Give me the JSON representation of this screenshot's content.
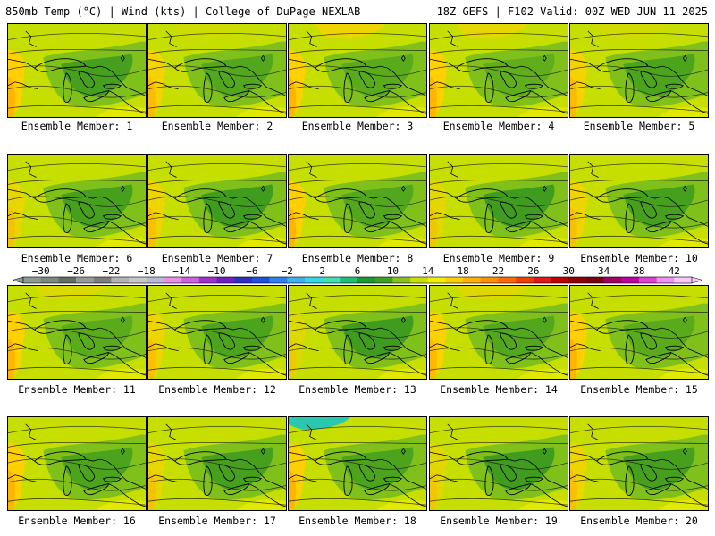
{
  "header": {
    "left_title": "850mb Temp (°C) | Wind (kts) | College of DuPage NEXLAB",
    "right_title": "18Z GEFS | F102 Valid: 00Z WED JUN 11 2025"
  },
  "panels": [
    {
      "label": "Ensemble Member: 1"
    },
    {
      "label": "Ensemble Member: 2"
    },
    {
      "label": "Ensemble Member: 3"
    },
    {
      "label": "Ensemble Member: 4"
    },
    {
      "label": "Ensemble Member: 5"
    },
    {
      "label": "Ensemble Member: 6"
    },
    {
      "label": "Ensemble Member: 7"
    },
    {
      "label": "Ensemble Member: 8"
    },
    {
      "label": "Ensemble Member: 9"
    },
    {
      "label": "Ensemble Member: 10"
    },
    {
      "label": "Ensemble Member: 11"
    },
    {
      "label": "Ensemble Member: 12"
    },
    {
      "label": "Ensemble Member: 13"
    },
    {
      "label": "Ensemble Member: 14"
    },
    {
      "label": "Ensemble Member: 15"
    },
    {
      "label": "Ensemble Member: 16"
    },
    {
      "label": "Ensemble Member: 17"
    },
    {
      "label": "Ensemble Member: 18"
    },
    {
      "label": "Ensemble Member: 19"
    },
    {
      "label": "Ensemble Member: 20"
    }
  ],
  "colorbar": {
    "tick_labels": [
      "−30",
      "−26",
      "−22",
      "−18",
      "−14",
      "−10",
      "−6",
      "−2",
      "2",
      "6",
      "10",
      "14",
      "18",
      "22",
      "26",
      "30",
      "34",
      "38",
      "42"
    ],
    "colors": [
      "#8c9c90",
      "#7a8a7e",
      "#64705f",
      "#9a9a9a",
      "#7e7e7e",
      "#b4b4b4",
      "#c8c8c8",
      "#b8b8d8",
      "#e890e8",
      "#d060e0",
      "#a030d0",
      "#7020c0",
      "#3030c0",
      "#2050e0",
      "#3080f0",
      "#40b0f0",
      "#30d8e8",
      "#40e0b0",
      "#20c070",
      "#1a9a30",
      "#40a020",
      "#88c020",
      "#c8e000",
      "#f0f000",
      "#ffd000",
      "#ffb000",
      "#ff9000",
      "#ff6a00",
      "#f04000",
      "#e01818",
      "#c00000",
      "#900000",
      "#780010",
      "#a00060",
      "#c000a0",
      "#e040d0",
      "#f090f0",
      "#f8c8f8"
    ]
  },
  "colors": {
    "dark_green": "#3f9c1e",
    "green": "#78bd1e",
    "yellow_green": "#c6df00",
    "yellow": "#f4f000",
    "gold": "#ffd000",
    "orange": "#ffae00",
    "teal": "#2ac8b0"
  }
}
